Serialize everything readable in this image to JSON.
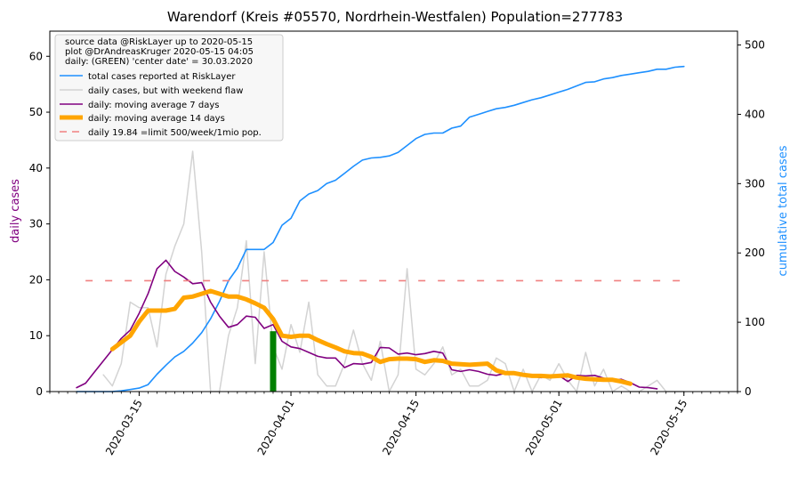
{
  "chart_data": {
    "type": "line",
    "title": "Warendorf (Kreis #05570, Nordrhein-Westfalen) Population=277783",
    "ylabel_left": "daily cases",
    "ylabel_right": "cumulative total cases",
    "ylim_left": [
      0,
      64.5
    ],
    "ylim_right": [
      0,
      520
    ],
    "xlim_dates": [
      "2020-03-05",
      "2020-05-21"
    ],
    "x_ticks": [
      "2020-03-15",
      "2020-04-01",
      "2020-04-15",
      "2020-05-01",
      "2020-05-15"
    ],
    "y_ticks_left": [
      "0",
      "10",
      "20",
      "30",
      "40",
      "50",
      "60"
    ],
    "y_ticks_right": [
      "0",
      "100",
      "200",
      "300",
      "400",
      "500"
    ],
    "legend": {
      "placement": "upper-left",
      "header": [
        "source data @RiskLayer up to 2020-05-15",
        "plot @DrAndreasKruger 2020-05-15 04:05",
        "daily: (GREEN) 'center date' = 30.03.2020"
      ]
    },
    "colors": {
      "total": "#1e90ff",
      "daily": "#d3d3d3",
      "ma7": "#800080",
      "ma14": "#ffa500",
      "limit": "#f08080",
      "center": "#008000",
      "left_label": "#800080",
      "right_label": "#1e90ff"
    },
    "center_date": "2020-03-30",
    "center_value": 10.8,
    "limit_value": 19.84,
    "limit_range": [
      "2020-03-09",
      "2020-05-15"
    ],
    "series": [
      {
        "name": "total cases reported at RiskLayer",
        "axis": "right",
        "x": [
          "2020-03-08",
          "2020-03-09",
          "2020-03-10",
          "2020-03-11",
          "2020-03-12",
          "2020-03-13",
          "2020-03-14",
          "2020-03-15",
          "2020-03-16",
          "2020-03-17",
          "2020-03-18",
          "2020-03-19",
          "2020-03-20",
          "2020-03-21",
          "2020-03-22",
          "2020-03-23",
          "2020-03-24",
          "2020-03-25",
          "2020-03-26",
          "2020-03-27",
          "2020-03-28",
          "2020-03-29",
          "2020-03-30",
          "2020-03-31",
          "2020-04-01",
          "2020-04-02",
          "2020-04-03",
          "2020-04-04",
          "2020-04-05",
          "2020-04-06",
          "2020-04-07",
          "2020-04-08",
          "2020-04-09",
          "2020-04-10",
          "2020-04-11",
          "2020-04-12",
          "2020-04-13",
          "2020-04-14",
          "2020-04-15",
          "2020-04-16",
          "2020-04-17",
          "2020-04-18",
          "2020-04-19",
          "2020-04-20",
          "2020-04-21",
          "2020-04-22",
          "2020-04-23",
          "2020-04-24",
          "2020-04-25",
          "2020-04-26",
          "2020-04-27",
          "2020-04-28",
          "2020-04-29",
          "2020-04-30",
          "2020-05-01",
          "2020-05-02",
          "2020-05-03",
          "2020-05-04",
          "2020-05-05",
          "2020-05-06",
          "2020-05-07",
          "2020-05-08",
          "2020-05-09",
          "2020-05-10",
          "2020-05-11",
          "2020-05-12",
          "2020-05-13",
          "2020-05-14",
          "2020-05-15"
        ],
        "values": [
          0,
          0,
          0,
          0,
          0,
          1,
          3,
          5,
          10,
          25,
          38,
          50,
          58,
          70,
          85,
          105,
          130,
          160,
          178,
          205,
          205,
          205,
          215,
          240,
          250,
          275,
          285,
          290,
          300,
          305,
          315,
          325,
          334,
          337,
          338,
          340,
          345,
          355,
          365,
          371,
          373,
          373,
          380,
          383,
          396,
          400,
          404,
          408,
          410,
          413,
          417,
          421,
          424,
          428,
          432,
          436,
          441,
          446,
          447,
          451,
          453,
          456,
          458,
          460,
          462,
          465,
          465,
          468,
          469
        ]
      },
      {
        "name": "daily cases, but with weekend flaw",
        "axis": "left",
        "x": [
          "2020-03-11",
          "2020-03-12",
          "2020-03-13",
          "2020-03-14",
          "2020-03-15",
          "2020-03-16",
          "2020-03-17",
          "2020-03-18",
          "2020-03-19",
          "2020-03-20",
          "2020-03-21",
          "2020-03-22",
          "2020-03-23",
          "2020-03-24",
          "2020-03-25",
          "2020-03-26",
          "2020-03-27",
          "2020-03-28",
          "2020-03-29",
          "2020-03-30",
          "2020-03-31",
          "2020-04-01",
          "2020-04-02",
          "2020-04-03",
          "2020-04-04",
          "2020-04-05",
          "2020-04-06",
          "2020-04-07",
          "2020-04-08",
          "2020-04-09",
          "2020-04-10",
          "2020-04-11",
          "2020-04-12",
          "2020-04-13",
          "2020-04-14",
          "2020-04-15",
          "2020-04-16",
          "2020-04-17",
          "2020-04-18",
          "2020-04-19",
          "2020-04-20",
          "2020-04-21",
          "2020-04-22",
          "2020-04-23",
          "2020-04-24",
          "2020-04-25",
          "2020-04-26",
          "2020-04-27",
          "2020-04-28",
          "2020-04-29",
          "2020-04-30",
          "2020-05-01",
          "2020-05-02",
          "2020-05-03",
          "2020-05-04",
          "2020-05-05",
          "2020-05-06",
          "2020-05-07",
          "2020-05-08",
          "2020-05-09",
          "2020-05-10",
          "2020-05-11",
          "2020-05-12",
          "2020-05-13",
          "2020-05-14",
          "2020-05-15"
        ],
        "values": [
          3,
          1,
          5,
          16,
          15,
          15,
          8,
          21,
          26,
          30,
          43,
          25,
          0,
          0,
          10,
          15,
          27,
          5,
          25,
          8,
          4,
          12,
          7,
          16,
          3,
          1,
          1,
          5,
          11,
          5,
          2,
          9,
          0,
          3,
          22,
          4,
          3,
          5,
          8,
          3,
          4,
          1,
          1,
          2,
          6,
          5,
          0,
          4,
          0,
          3,
          2,
          5,
          2,
          0,
          7,
          1,
          4,
          0,
          1,
          0,
          0,
          1,
          2,
          0,
          0,
          0
        ]
      },
      {
        "name": "daily: moving average 7 days",
        "axis": "left",
        "x": [
          "2020-03-08",
          "2020-03-09",
          "2020-03-10",
          "2020-03-11",
          "2020-03-12",
          "2020-03-13",
          "2020-03-14",
          "2020-03-15",
          "2020-03-16",
          "2020-03-17",
          "2020-03-18",
          "2020-03-19",
          "2020-03-20",
          "2020-03-21",
          "2020-03-22",
          "2020-03-23",
          "2020-03-24",
          "2020-03-25",
          "2020-03-26",
          "2020-03-27",
          "2020-03-28",
          "2020-03-29",
          "2020-03-30",
          "2020-03-31",
          "2020-04-01",
          "2020-04-02",
          "2020-04-03",
          "2020-04-04",
          "2020-04-05",
          "2020-04-06",
          "2020-04-07",
          "2020-04-08",
          "2020-04-09",
          "2020-04-10",
          "2020-04-11",
          "2020-04-12",
          "2020-04-13",
          "2020-04-14",
          "2020-04-15",
          "2020-04-16",
          "2020-04-17",
          "2020-04-18",
          "2020-04-19",
          "2020-04-20",
          "2020-04-21",
          "2020-04-22",
          "2020-04-23",
          "2020-04-24",
          "2020-04-25",
          "2020-04-26",
          "2020-04-27",
          "2020-04-28",
          "2020-04-29",
          "2020-04-30",
          "2020-05-01",
          "2020-05-02",
          "2020-05-03",
          "2020-05-04",
          "2020-05-05",
          "2020-05-06",
          "2020-05-07",
          "2020-05-08",
          "2020-05-09",
          "2020-05-10",
          "2020-05-11",
          "2020-05-12"
        ],
        "values": [
          0.7,
          1.5,
          3.5,
          5.5,
          7.5,
          9.5,
          11,
          14,
          17.5,
          22,
          23.5,
          21.5,
          20.5,
          19.3,
          19.5,
          16,
          13.5,
          11.5,
          12,
          13.5,
          13.3,
          11.3,
          12,
          9,
          8,
          7.7,
          7,
          6.3,
          6,
          6,
          4.3,
          5,
          4.9,
          5.2,
          7.9,
          7.8,
          6.7,
          6.9,
          6.6,
          6.8,
          7.2,
          6.9,
          3.9,
          3.6,
          3.9,
          3.6,
          3.1,
          2.9,
          3.3,
          3.1,
          2.9,
          2.7,
          2.5,
          2.6,
          2.9,
          1.8,
          2.9,
          2.8,
          2.9,
          2.4,
          2,
          2.2,
          1.6,
          0.8,
          0.7,
          0.5
        ]
      },
      {
        "name": "daily: moving average 14 days",
        "axis": "left",
        "x": [
          "2020-03-12",
          "2020-03-13",
          "2020-03-14",
          "2020-03-15",
          "2020-03-16",
          "2020-03-17",
          "2020-03-18",
          "2020-03-19",
          "2020-03-20",
          "2020-03-21",
          "2020-03-22",
          "2020-03-23",
          "2020-03-24",
          "2020-03-25",
          "2020-03-26",
          "2020-03-27",
          "2020-03-28",
          "2020-03-29",
          "2020-03-30",
          "2020-03-31",
          "2020-04-01",
          "2020-04-02",
          "2020-04-03",
          "2020-04-04",
          "2020-04-05",
          "2020-04-06",
          "2020-04-07",
          "2020-04-08",
          "2020-04-09",
          "2020-04-10",
          "2020-04-11",
          "2020-04-12",
          "2020-04-13",
          "2020-04-14",
          "2020-04-15",
          "2020-04-16",
          "2020-04-17",
          "2020-04-18",
          "2020-04-19",
          "2020-04-20",
          "2020-04-21",
          "2020-04-22",
          "2020-04-23",
          "2020-04-24",
          "2020-04-25",
          "2020-04-26",
          "2020-04-27",
          "2020-04-28",
          "2020-04-29",
          "2020-04-30",
          "2020-05-01",
          "2020-05-02",
          "2020-05-03",
          "2020-05-04",
          "2020-05-05",
          "2020-05-06",
          "2020-05-07",
          "2020-05-08",
          "2020-05-09"
        ],
        "values": [
          7.6,
          8.8,
          10,
          12.5,
          14.5,
          14.5,
          14.5,
          14.8,
          16.8,
          17,
          17.5,
          18,
          17.5,
          17,
          17,
          16.5,
          15.8,
          15,
          13,
          10,
          9.8,
          10,
          10,
          9.2,
          8.5,
          7.9,
          7.2,
          6.9,
          6.8,
          6.2,
          5.3,
          5.8,
          5.9,
          5.9,
          5.8,
          5.3,
          5.6,
          5.5,
          5,
          4.9,
          4.8,
          4.9,
          5.0,
          3.8,
          3.3,
          3.3,
          3.0,
          2.8,
          2.8,
          2.7,
          2.8,
          2.9,
          2.5,
          2.3,
          2.2,
          2.1,
          2.1,
          1.8,
          1.4
        ]
      },
      {
        "name": "daily 19.84 =limit 500/week/1mio pop.",
        "axis": "left",
        "x": [],
        "values": []
      }
    ]
  }
}
